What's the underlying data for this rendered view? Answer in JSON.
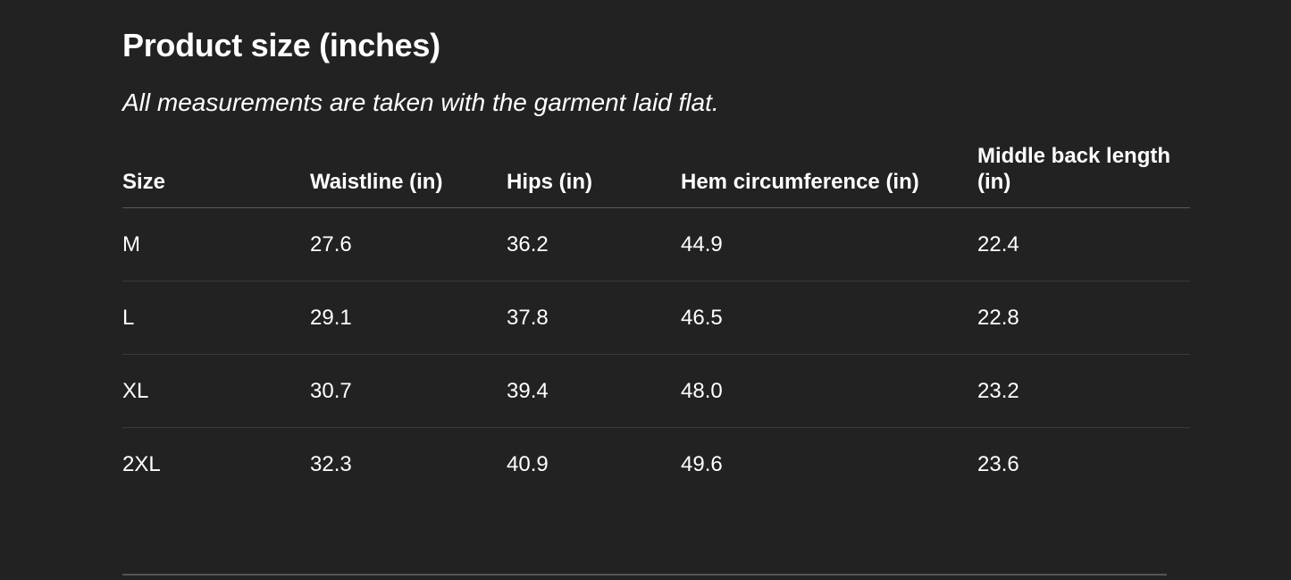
{
  "title": "Product size (inches)",
  "subtitle": "All measurements are taken with the garment laid flat.",
  "table": {
    "headers": [
      "Size",
      "Waistline (in)",
      "Hips (in)",
      "Hem circumference (in)",
      "Middle back length (in)"
    ],
    "rows": [
      [
        "M",
        "27.6",
        "36.2",
        "44.9",
        "22.4"
      ],
      [
        "L",
        "29.1",
        "37.8",
        "46.5",
        "22.8"
      ],
      [
        "XL",
        "30.7",
        "39.4",
        "48.0",
        "23.2"
      ],
      [
        "2XL",
        "32.3",
        "40.9",
        "49.6",
        "23.6"
      ]
    ]
  }
}
